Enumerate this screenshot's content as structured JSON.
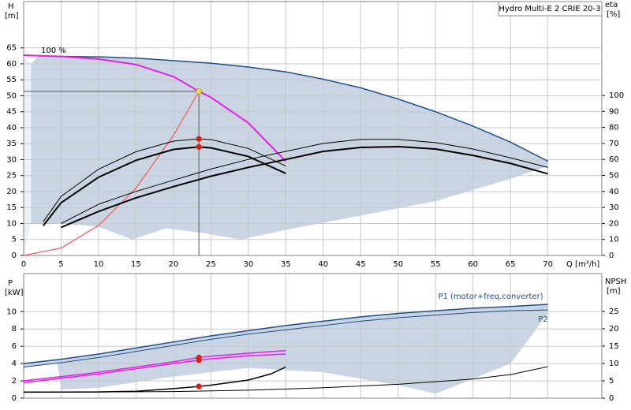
{
  "chart_data": [
    {
      "type": "line",
      "title": "Hydro Multi-E 2 CRIE 20-3",
      "annotation": "100 %",
      "y_label": "H",
      "y_unit": "[m]",
      "y2_label": "eta",
      "y2_unit": "[%]",
      "x_label": "Q [m³/h]",
      "xlim": [
        0,
        77.2
      ],
      "xticks": [
        0,
        5,
        10,
        15,
        20,
        25,
        30,
        35,
        40,
        45,
        50,
        55,
        60,
        65,
        70
      ],
      "ylim": [
        0,
        79.5
      ],
      "yticks": [
        0,
        5,
        10,
        15,
        20,
        25,
        30,
        35,
        40,
        45,
        50,
        55,
        60,
        65
      ],
      "y2lim": [
        0,
        158.6
      ],
      "y2ticks": [
        0,
        10,
        20,
        30,
        40,
        50,
        60,
        70,
        80,
        90,
        100
      ],
      "grid": true,
      "crosshair": true,
      "areas": [
        {
          "color": "#eaf1f8",
          "x": [
            0,
            1,
            1,
            0
          ],
          "values": [
            62.7,
            60,
            10,
            0
          ]
        },
        {
          "color": "#c9d5e2",
          "x": [
            1,
            2,
            5,
            10,
            15,
            20,
            25,
            30,
            35,
            40,
            45,
            50,
            55,
            60,
            65,
            70,
            70,
            65,
            55,
            45,
            35,
            29,
            24,
            19,
            14.5,
            10,
            5,
            1
          ],
          "values": [
            60,
            62.5,
            62.3,
            62.2,
            61.8,
            61,
            60.2,
            59,
            57.5,
            55.2,
            52.5,
            49,
            45,
            40.5,
            35.5,
            29.5,
            28,
            24,
            17,
            12.5,
            8,
            5,
            7,
            8.5,
            5,
            9,
            10,
            10
          ]
        }
      ],
      "series": [
        {
          "color": "#1f4e8a",
          "width": 1.5,
          "x": [
            2,
            5,
            10,
            15,
            20,
            25,
            30,
            35,
            40,
            45,
            50,
            55,
            60,
            65,
            70
          ],
          "values": [
            62.5,
            62.3,
            62.2,
            61.8,
            61,
            60.2,
            59,
            57.5,
            55.2,
            52.5,
            49,
            45,
            40.5,
            35.5,
            29.5
          ]
        },
        {
          "color": "#e81ce8",
          "width": 2,
          "x": [
            0,
            5,
            10,
            15,
            20,
            23.4,
            25,
            30,
            35
          ],
          "values": [
            62.7,
            62.3,
            61.5,
            59.8,
            56,
            51.4,
            49.5,
            41.5,
            29.5
          ]
        },
        {
          "color": "#ff4040",
          "width": 1,
          "x": [
            0,
            5,
            10,
            15,
            20,
            23.4
          ],
          "values": [
            0,
            2.35,
            9.4,
            21.1,
            37.6,
            51.4
          ]
        },
        {
          "color": "#000000",
          "width": 1,
          "x": [
            2.6,
            5,
            10,
            15,
            20,
            23.4,
            25,
            30,
            35
          ],
          "values": [
            10.5,
            18.5,
            27,
            32.5,
            35.8,
            36.5,
            36.3,
            33.5,
            28
          ]
        },
        {
          "color": "#000000",
          "width": 2,
          "x": [
            2.6,
            5,
            10,
            15,
            20,
            23.4,
            25,
            30,
            35
          ],
          "values": [
            9.3,
            16.5,
            24.5,
            29.8,
            33.2,
            34,
            33.7,
            31,
            25.7
          ]
        },
        {
          "color": "#000000",
          "width": 1,
          "axis": "y2",
          "x": [
            5,
            10,
            15,
            20,
            25,
            30,
            35,
            40,
            45,
            50,
            55,
            60,
            65,
            70
          ],
          "values": [
            20,
            32,
            40,
            47,
            54,
            60,
            65,
            70,
            72.5,
            72.5,
            70.5,
            66.5,
            61,
            55
          ]
        },
        {
          "color": "#000000",
          "width": 2,
          "axis": "y2",
          "x": [
            5,
            10,
            15,
            20,
            25,
            30,
            35,
            40,
            45,
            50,
            55,
            60,
            65,
            70
          ],
          "values": [
            17.5,
            27.5,
            36,
            43,
            49.5,
            55,
            60,
            65,
            67.5,
            68,
            66.5,
            62.5,
            57.5,
            51
          ]
        }
      ],
      "points": [
        {
          "x": 23.4,
          "y": 51.4,
          "color": "#f2dc3c"
        },
        {
          "x": 23.4,
          "y": 36.5,
          "color": "#e8141c"
        },
        {
          "x": 23.4,
          "y": 34,
          "color": "#e8141c"
        }
      ]
    },
    {
      "type": "line",
      "y_label": "P",
      "y_unit": "[kW]",
      "y2_label": "NPSH",
      "y2_unit": "[m]",
      "xlim": [
        0,
        77.2
      ],
      "ylim": [
        0,
        14.4
      ],
      "yticks": [
        0,
        2,
        4,
        6,
        8,
        10
      ],
      "y2lim": [
        0,
        35.9
      ],
      "y2ticks": [
        0,
        5,
        10,
        15,
        20,
        25
      ],
      "grid": true,
      "areas": [
        {
          "color": "#c9d5e2",
          "x": [
            0,
            5,
            10,
            15,
            20,
            25,
            30,
            35,
            40,
            45,
            50,
            55,
            60,
            65,
            70,
            70,
            65,
            55,
            50,
            40,
            30,
            20,
            10,
            5,
            4.5,
            0
          ],
          "values": [
            4.0,
            4.5,
            5.1,
            5.8,
            6.5,
            7.2,
            7.8,
            8.4,
            8.9,
            9.4,
            9.8,
            10.1,
            10.4,
            10.6,
            10.85,
            9.8,
            4,
            0.5,
            1.5,
            3,
            3.5,
            2.5,
            1.2,
            1.0,
            4.0,
            3.6
          ]
        }
      ],
      "series": [
        {
          "name": "P1 (motor+freq.converter)",
          "color": "#1f4e8a",
          "width": 1.5,
          "x": [
            0,
            5,
            10,
            15,
            20,
            25,
            30,
            35,
            40,
            45,
            50,
            55,
            60,
            65,
            70
          ],
          "values": [
            4.0,
            4.5,
            5.1,
            5.8,
            6.5,
            7.2,
            7.8,
            8.4,
            8.9,
            9.4,
            9.8,
            10.1,
            10.4,
            10.6,
            10.85
          ]
        },
        {
          "name": "P2",
          "color": "#1f4e8a",
          "width": 1,
          "x": [
            0,
            5,
            10,
            15,
            20,
            25,
            30,
            35,
            40,
            45,
            50,
            55,
            60,
            65,
            70
          ],
          "values": [
            3.6,
            4.1,
            4.7,
            5.4,
            6.1,
            6.8,
            7.4,
            7.9,
            8.4,
            8.9,
            9.3,
            9.6,
            9.9,
            10.1,
            10.2
          ]
        },
        {
          "color": "#e81ce8",
          "width": 1.5,
          "x": [
            0,
            5,
            10,
            15,
            20,
            23.4,
            25,
            30,
            35
          ],
          "values": [
            2.0,
            2.5,
            3.0,
            3.6,
            4.2,
            4.7,
            4.85,
            5.2,
            5.5
          ]
        },
        {
          "color": "#e81ce8",
          "width": 1.5,
          "x": [
            0,
            5,
            10,
            15,
            20,
            23.4,
            25,
            30,
            35
          ],
          "values": [
            1.8,
            2.3,
            2.8,
            3.4,
            4.0,
            4.4,
            4.55,
            4.9,
            5.1
          ]
        },
        {
          "color": "#000000",
          "width": 1.5,
          "x": [
            0,
            10,
            15,
            20,
            23.4,
            25,
            30,
            33,
            35
          ],
          "values": [
            0.7,
            0.72,
            0.8,
            1.1,
            1.36,
            1.5,
            2.1,
            2.8,
            3.6
          ]
        },
        {
          "color": "#000000",
          "width": 1,
          "axis": "y2",
          "x": [
            0,
            10,
            20,
            30,
            40,
            50,
            60,
            65,
            70
          ],
          "values": [
            1.8,
            1.8,
            1.9,
            2.3,
            3,
            4,
            5.5,
            6.8,
            9.1
          ]
        }
      ],
      "points": [
        {
          "x": 23.4,
          "y": 4.7,
          "color": "#e8141c"
        },
        {
          "x": 23.4,
          "y": 4.4,
          "color": "#e8141c"
        },
        {
          "x": 23.4,
          "y": 1.36,
          "color": "#e8141c"
        }
      ]
    }
  ]
}
